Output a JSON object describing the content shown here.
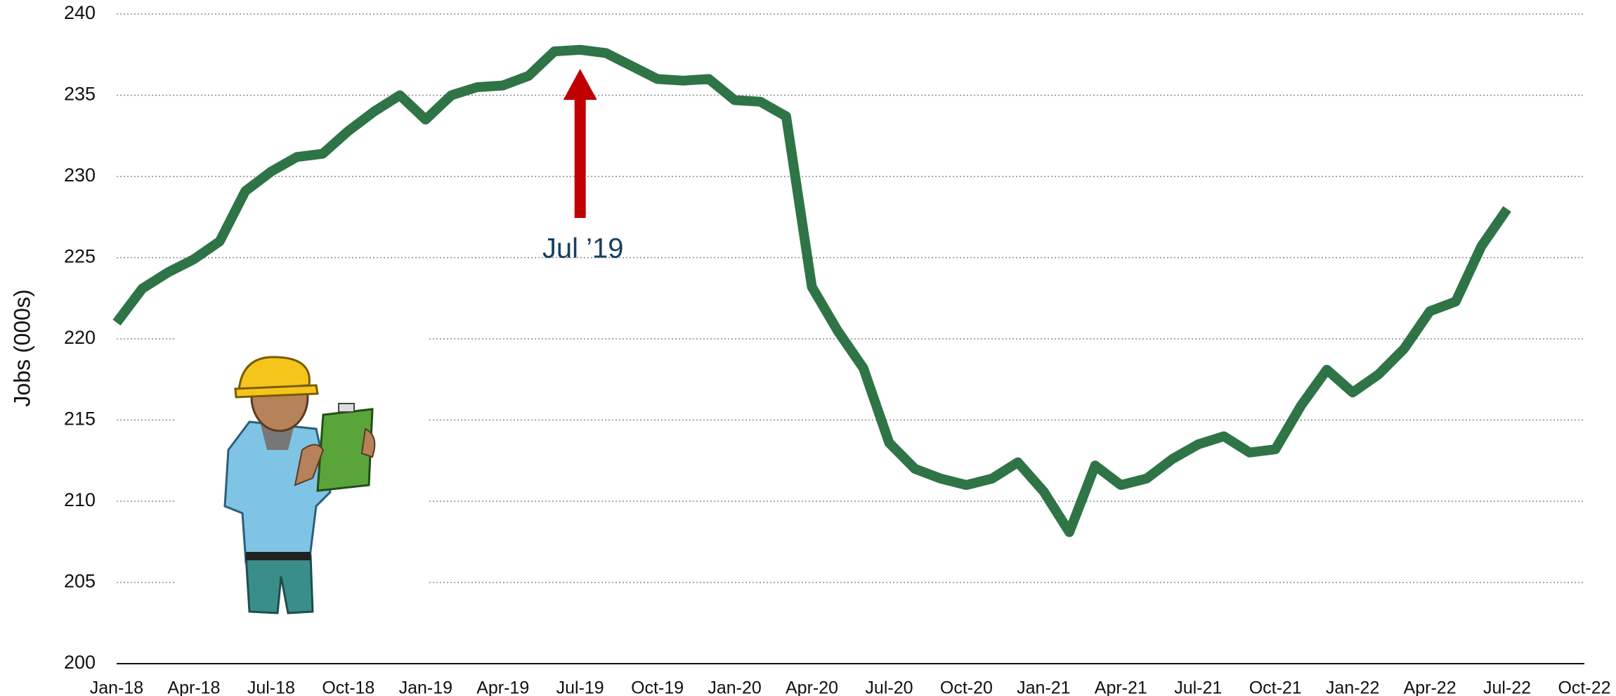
{
  "chart_data": {
    "type": "line",
    "y_label": "Jobs (000s)",
    "categories": [
      "Jan-18",
      null,
      null,
      "Apr-18",
      null,
      null,
      "Jul-18",
      null,
      null,
      "Oct-18",
      null,
      null,
      "Jan-19",
      null,
      null,
      "Apr-19",
      null,
      null,
      "Jul-19",
      null,
      null,
      "Oct-19",
      null,
      null,
      "Jan-20",
      null,
      null,
      "Apr-20",
      null,
      null,
      "Jul-20",
      null,
      null,
      "Oct-20",
      null,
      null,
      "Jan-21",
      null,
      null,
      "Apr-21",
      null,
      null,
      "Jul-21",
      null,
      null,
      "Oct-21",
      null,
      null,
      "Jan-22",
      null,
      null,
      "Apr-22",
      null,
      null,
      "Jul-22",
      null,
      null,
      "Oct-22"
    ],
    "series": [
      {
        "color": "#2e7447",
        "values": [
          221.0,
          223.1,
          224.1,
          224.9,
          226.0,
          229.1,
          230.3,
          231.2,
          231.4,
          232.8,
          234.0,
          235.0,
          233.5,
          235.0,
          235.5,
          235.6,
          236.2,
          237.7,
          237.8,
          237.6,
          236.8,
          236.0,
          235.9,
          236.0,
          234.7,
          234.6,
          233.7,
          223.2,
          220.5,
          218.2,
          213.6,
          212.0,
          211.4,
          211.0,
          211.4,
          212.4,
          210.6,
          208.1,
          212.2,
          211.0,
          211.4,
          212.6,
          213.5,
          214.0,
          213.0,
          213.2,
          215.9,
          218.1,
          216.7,
          217.8,
          219.4,
          221.7,
          222.3,
          225.7,
          228.0,
          null,
          null,
          null
        ]
      }
    ],
    "ylim": [
      200,
      240
    ],
    "yticks": [
      200,
      205,
      210,
      215,
      220,
      225,
      230,
      235,
      240
    ],
    "grid": true,
    "annotation": "Jul ’19"
  }
}
